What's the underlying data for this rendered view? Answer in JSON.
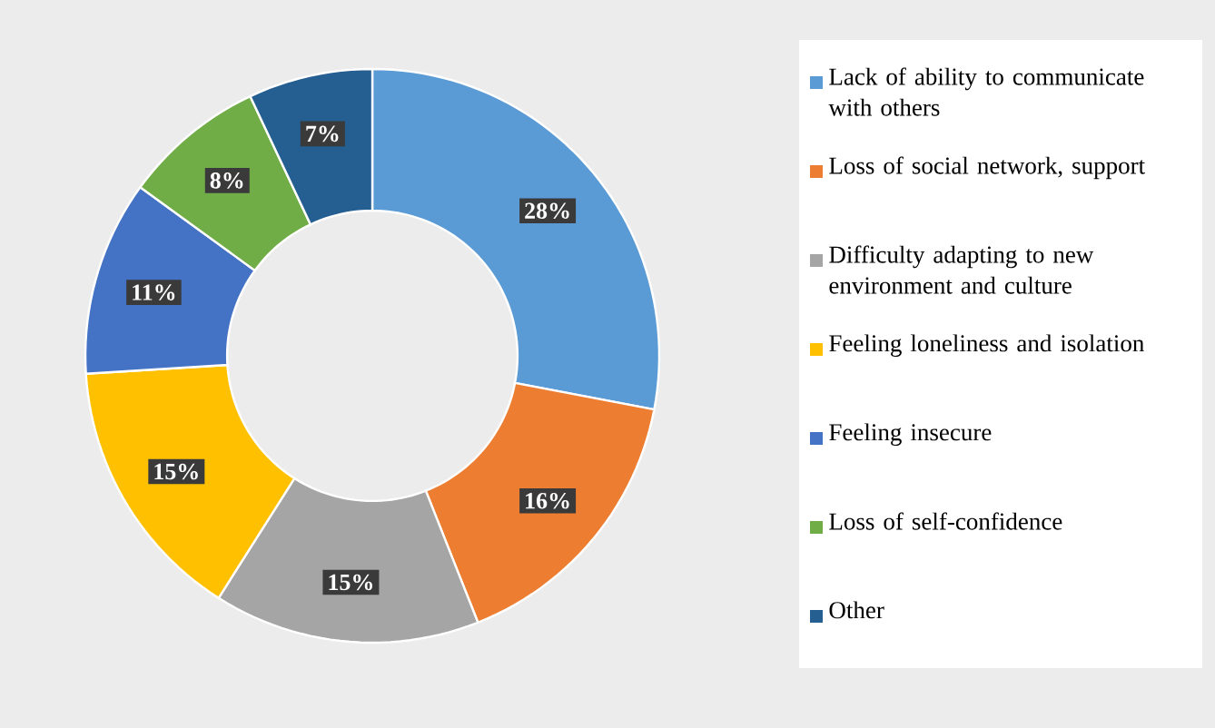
{
  "chart_data": {
    "type": "donut",
    "categories": [
      "Lack of ability to communicate with others",
      "Loss of social network, support",
      "Difficulty adapting to new environment and culture",
      "Feeling loneliness and isolation",
      "Feeling insecure",
      "Loss of self-confidence",
      "Other"
    ],
    "values": [
      28,
      16,
      15,
      15,
      11,
      8,
      7
    ],
    "value_labels": [
      "28%",
      "16%",
      "15%",
      "15%",
      "11%",
      "8%",
      "7%"
    ],
    "colors": [
      "#5b9bd5",
      "#ed7d31",
      "#a5a5a5",
      "#ffc000",
      "#4472c4",
      "#70ad47",
      "#255e91"
    ],
    "legend": "right"
  }
}
